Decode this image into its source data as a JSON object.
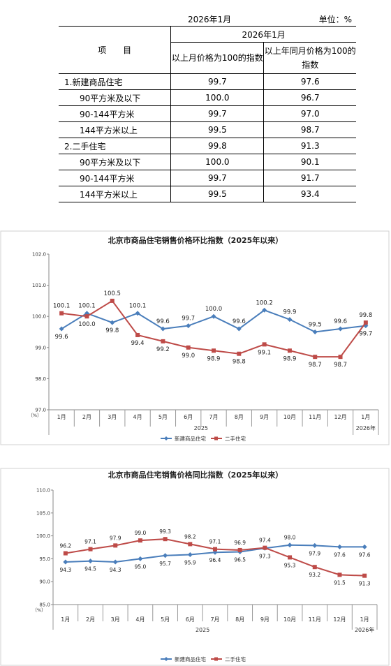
{
  "table": {
    "period_label": "2026年1月",
    "unit_label": "单位：%",
    "group_header": "2026年1月",
    "item_header": "项　　目",
    "col_mom": "以上月价格为100的指数",
    "col_yoy": "以上年同月价格为100的指数",
    "rows": [
      {
        "label": "1.新建商品住宅",
        "mom": "99.7",
        "yoy": "97.6",
        "level": 1
      },
      {
        "label": "90平方米及以下",
        "mom": "100.0",
        "yoy": "96.7",
        "level": 2
      },
      {
        "label": "90-144平方米",
        "mom": "99.7",
        "yoy": "97.0",
        "level": 2
      },
      {
        "label": "144平方米以上",
        "mom": "99.5",
        "yoy": "98.7",
        "level": 2
      },
      {
        "label": "2.二手住宅",
        "mom": "99.8",
        "yoy": "91.3",
        "level": 1
      },
      {
        "label": "90平方米及以下",
        "mom": "100.0",
        "yoy": "90.1",
        "level": 2
      },
      {
        "label": "90-144平方米",
        "mom": "99.7",
        "yoy": "91.7",
        "level": 2
      },
      {
        "label": "144平方米以上",
        "mom": "99.5",
        "yoy": "93.4",
        "level": 2
      }
    ]
  },
  "chart_data": [
    {
      "type": "line",
      "title": "北京市商品住宅销售价格环比指数（2025年以来）",
      "ylabel": "（%）",
      "ylim": [
        97.0,
        102.0
      ],
      "yticks": [
        "97.0",
        "98.0",
        "99.0",
        "100.0",
        "101.0",
        "102.0"
      ],
      "categories": [
        "1月",
        "2月",
        "3月",
        "4月",
        "5月",
        "6月",
        "7月",
        "8月",
        "9月",
        "10月",
        "11月",
        "12月",
        "1月"
      ],
      "year_labels": [
        "2025",
        "2026年"
      ],
      "grid": false,
      "legend_position": "bottom",
      "series": [
        {
          "name": "新建商品住宅",
          "color": "#4a7ebb",
          "marker": "diamond",
          "values": [
            99.6,
            100.1,
            99.8,
            100.1,
            99.6,
            99.7,
            100.0,
            99.6,
            100.2,
            99.9,
            99.5,
            99.6,
            99.7
          ],
          "label_pos": [
            "below",
            "above",
            "below",
            "above",
            "above",
            "above",
            "above",
            "above",
            "above",
            "above",
            "above",
            "above",
            "below"
          ]
        },
        {
          "name": "二手住宅",
          "color": "#be4b48",
          "marker": "square",
          "values": [
            100.1,
            100.0,
            100.5,
            99.4,
            99.2,
            99.0,
            98.9,
            98.8,
            99.1,
            98.9,
            98.7,
            98.7,
            99.8
          ],
          "label_pos": [
            "above",
            "below",
            "above",
            "below",
            "below",
            "below",
            "below",
            "below",
            "below",
            "below",
            "below",
            "below",
            "above"
          ]
        }
      ]
    },
    {
      "type": "line",
      "title": "北京市商品住宅销售价格同比指数（2025年以来）",
      "ylabel": "（%）",
      "ylim": [
        85.0,
        110.0
      ],
      "yticks": [
        "85.0",
        "90.0",
        "95.0",
        "100.0",
        "105.0",
        "110.0"
      ],
      "categories": [
        "1月",
        "2月",
        "3月",
        "4月",
        "5月",
        "6月",
        "7月",
        "8月",
        "9月",
        "10月",
        "11月",
        "12月",
        "1月"
      ],
      "year_labels": [
        "2025",
        "2026年"
      ],
      "grid": false,
      "legend_position": "bottom",
      "series": [
        {
          "name": "新建商品住宅",
          "color": "#4a7ebb",
          "marker": "diamond",
          "values": [
            94.3,
            94.5,
            94.3,
            95.0,
            95.7,
            95.9,
            96.4,
            96.5,
            97.3,
            98.0,
            97.9,
            97.6,
            97.6
          ],
          "label_pos": [
            "below",
            "below",
            "below",
            "below",
            "below",
            "below",
            "below",
            "below",
            "below",
            "above",
            "below",
            "below",
            "below"
          ]
        },
        {
          "name": "二手住宅",
          "color": "#be4b48",
          "marker": "square",
          "values": [
            96.2,
            97.1,
            97.9,
            99.0,
            99.3,
            98.2,
            97.1,
            96.9,
            97.4,
            95.3,
            93.2,
            91.5,
            91.3
          ],
          "label_pos": [
            "above",
            "above",
            "above",
            "above",
            "above",
            "above",
            "above",
            "above",
            "above",
            "below",
            "below",
            "below",
            "below"
          ]
        }
      ]
    }
  ]
}
